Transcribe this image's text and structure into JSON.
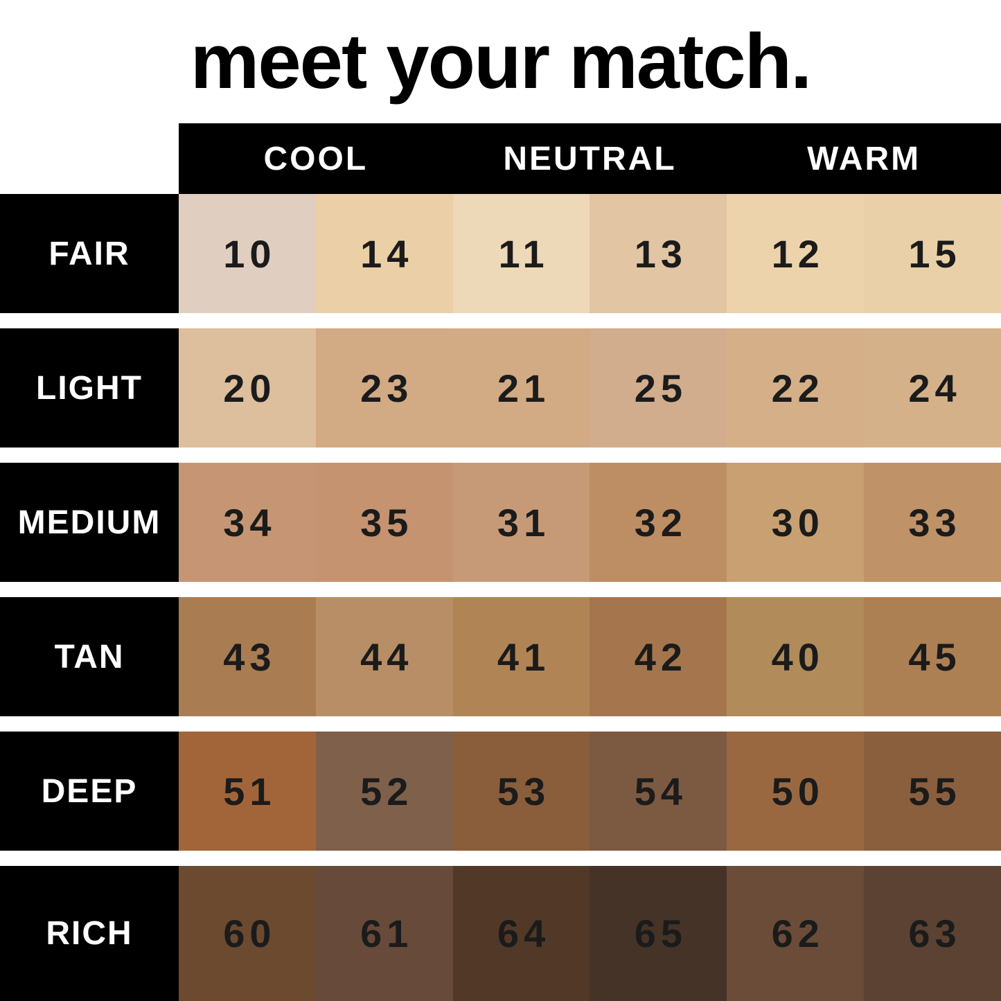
{
  "title": "meet your match.",
  "colors": {
    "background": "#ffffff",
    "bar": "#000000",
    "header_text": "#ffffff",
    "number_text": "#1b1b1b"
  },
  "header": {
    "columns": [
      "COOL",
      "NEUTRAL",
      "WARM"
    ]
  },
  "rows": [
    {
      "label": "FAIR",
      "swatches": [
        {
          "shade": "10",
          "color": "#e0cfc0"
        },
        {
          "shade": "14",
          "color": "#ebcfa6"
        },
        {
          "shade": "11",
          "color": "#edd8b8"
        },
        {
          "shade": "13",
          "color": "#e2c5a3"
        },
        {
          "shade": "12",
          "color": "#ecd3ac"
        },
        {
          "shade": "15",
          "color": "#e9d0a8"
        }
      ]
    },
    {
      "label": "LIGHT",
      "swatches": [
        {
          "shade": "20",
          "color": "#ddbe9d"
        },
        {
          "shade": "23",
          "color": "#d2aa84"
        },
        {
          "shade": "21",
          "color": "#d2ab84"
        },
        {
          "shade": "25",
          "color": "#d1ad8d"
        },
        {
          "shade": "22",
          "color": "#d4af88"
        },
        {
          "shade": "24",
          "color": "#d5b189"
        }
      ]
    },
    {
      "label": "MEDIUM",
      "swatches": [
        {
          "shade": "34",
          "color": "#c69674"
        },
        {
          "shade": "35",
          "color": "#c59370"
        },
        {
          "shade": "31",
          "color": "#c79a77"
        },
        {
          "shade": "32",
          "color": "#bd8d64"
        },
        {
          "shade": "30",
          "color": "#c9a071"
        },
        {
          "shade": "33",
          "color": "#bf9267"
        }
      ]
    },
    {
      "label": "TAN",
      "swatches": [
        {
          "shade": "43",
          "color": "#aa7c52"
        },
        {
          "shade": "44",
          "color": "#b78e66"
        },
        {
          "shade": "41",
          "color": "#b08455"
        },
        {
          "shade": "42",
          "color": "#a5764d"
        },
        {
          "shade": "40",
          "color": "#b18b59"
        },
        {
          "shade": "45",
          "color": "#ad8054"
        }
      ]
    },
    {
      "label": "DEEP",
      "swatches": [
        {
          "shade": "51",
          "color": "#a2653a"
        },
        {
          "shade": "52",
          "color": "#7f604a"
        },
        {
          "shade": "53",
          "color": "#8a5e3b"
        },
        {
          "shade": "54",
          "color": "#7c5a41"
        },
        {
          "shade": "50",
          "color": "#9a6840"
        },
        {
          "shade": "55",
          "color": "#8a5f3e"
        }
      ]
    },
    {
      "label": "RICH",
      "swatches": [
        {
          "shade": "60",
          "color": "#6b4a30"
        },
        {
          "shade": "61",
          "color": "#684a3a"
        },
        {
          "shade": "64",
          "color": "#523827"
        },
        {
          "shade": "65",
          "color": "#463327"
        },
        {
          "shade": "62",
          "color": "#6b4c38"
        },
        {
          "shade": "63",
          "color": "#5c4232"
        }
      ]
    }
  ],
  "chart_data": {
    "type": "table",
    "title": "meet your match.",
    "column_groups": [
      "COOL",
      "NEUTRAL",
      "WARM"
    ],
    "columns_per_group": 2,
    "row_labels": [
      "FAIR",
      "LIGHT",
      "MEDIUM",
      "TAN",
      "DEEP",
      "RICH"
    ],
    "values": [
      [
        10,
        14,
        11,
        13,
        12,
        15
      ],
      [
        20,
        23,
        21,
        25,
        22,
        24
      ],
      [
        34,
        35,
        31,
        32,
        30,
        33
      ],
      [
        43,
        44,
        41,
        42,
        40,
        45
      ],
      [
        51,
        52,
        53,
        54,
        50,
        55
      ],
      [
        60,
        61,
        64,
        65,
        62,
        63
      ]
    ],
    "cell_colors": [
      [
        "#e0cfc0",
        "#ebcfa6",
        "#edd8b8",
        "#e2c5a3",
        "#ecd3ac",
        "#e9d0a8"
      ],
      [
        "#ddbe9d",
        "#d2aa84",
        "#d2ab84",
        "#d1ad8d",
        "#d4af88",
        "#d5b189"
      ],
      [
        "#c69674",
        "#c59370",
        "#c79a77",
        "#bd8d64",
        "#c9a071",
        "#bf9267"
      ],
      [
        "#aa7c52",
        "#b78e66",
        "#b08455",
        "#a5764d",
        "#b18b59",
        "#ad8054"
      ],
      [
        "#a2653a",
        "#7f604a",
        "#8a5e3b",
        "#7c5a41",
        "#9a6840",
        "#8a5f3e"
      ],
      [
        "#6b4a30",
        "#684a3a",
        "#523827",
        "#463327",
        "#6b4c38",
        "#5c4232"
      ]
    ],
    "legend_position": "none",
    "grid": false
  }
}
